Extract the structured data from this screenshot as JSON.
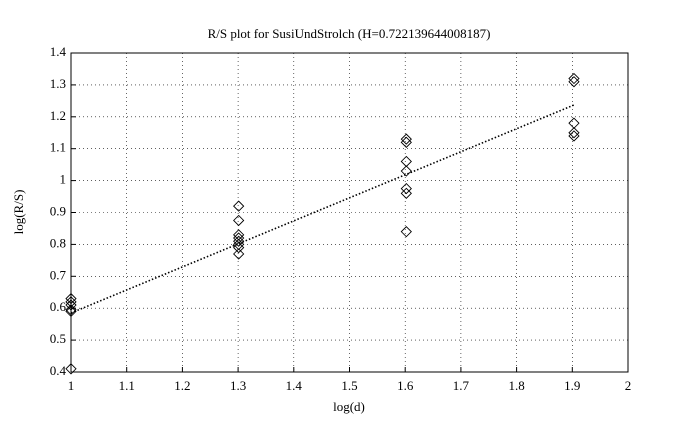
{
  "chart_data": {
    "type": "scatter",
    "title": "R/S plot for SusiUndStrolch (H=0.722139644008187)",
    "x_label": "log(d)",
    "y_label": "log(R/S)",
    "xlim": [
      1,
      2
    ],
    "xticks": [
      1,
      1.1,
      1.2,
      1.3,
      1.4,
      1.5,
      1.6,
      1.7,
      1.8,
      1.9,
      2
    ],
    "ylim": [
      0.4,
      1.4
    ],
    "yticks": [
      0.4,
      0.5,
      0.6,
      0.7,
      0.8,
      0.9,
      1,
      1.1,
      1.2,
      1.3,
      1.4
    ],
    "grid": true,
    "series": [
      {
        "kind": "scatter",
        "marker": "diamond",
        "color": "#000000",
        "x": [
          1,
          1,
          1,
          1,
          1,
          1,
          1.301,
          1.301,
          1.301,
          1.301,
          1.301,
          1.301,
          1.301,
          1.301,
          1.602,
          1.602,
          1.602,
          1.602,
          1.602,
          1.602,
          1.602,
          1.903,
          1.903,
          1.903,
          1.903,
          1.903
        ],
        "values": [
          0.63,
          0.62,
          0.61,
          0.595,
          0.59,
          0.41,
          0.92,
          0.875,
          0.83,
          0.82,
          0.81,
          0.8,
          0.79,
          0.77,
          1.13,
          1.12,
          1.06,
          1.03,
          0.975,
          0.96,
          0.84,
          1.32,
          1.31,
          1.18,
          1.15,
          1.14
        ]
      },
      {
        "kind": "line",
        "style": "dotted",
        "color": "#000000",
        "x": [
          1,
          1.903
        ],
        "values": [
          0.585,
          1.237
        ]
      }
    ]
  }
}
